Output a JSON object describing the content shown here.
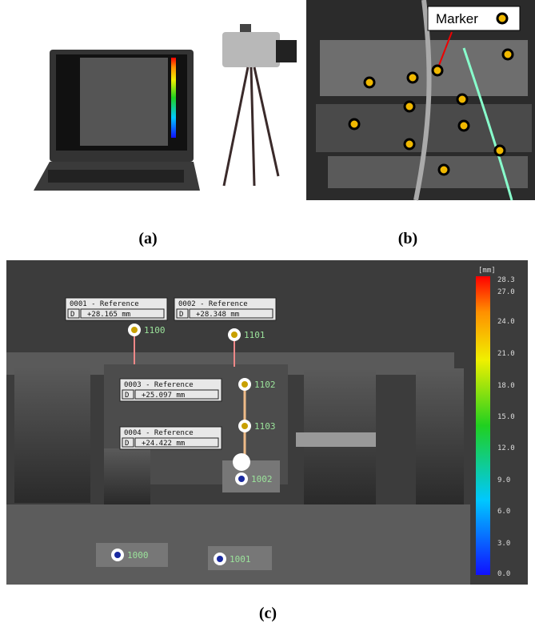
{
  "captions": {
    "a": "(a)",
    "b": "(b)",
    "c": "(c)"
  },
  "panel_b": {
    "marker_label": "Marker"
  },
  "panel_c": {
    "references": [
      {
        "title": "0001 - Reference",
        "d": "D",
        "value": "+28.165 mm"
      },
      {
        "title": "0002 - Reference",
        "d": "D",
        "value": "+28.348 mm"
      },
      {
        "title": "0003 - Reference",
        "d": "D",
        "value": "+25.097 mm"
      },
      {
        "title": "0004 - Reference",
        "d": "D",
        "value": "+24.422 mm"
      }
    ],
    "points": [
      "1100",
      "1101",
      "1102",
      "1103",
      "1002",
      "1000",
      "1001"
    ],
    "scale": {
      "unit": "[mm]",
      "ticks": [
        "28.3",
        "27.0",
        "24.0",
        "21.0",
        "18.0",
        "15.0",
        "12.0",
        "9.0",
        "6.0",
        "3.0",
        "0.0"
      ]
    }
  }
}
